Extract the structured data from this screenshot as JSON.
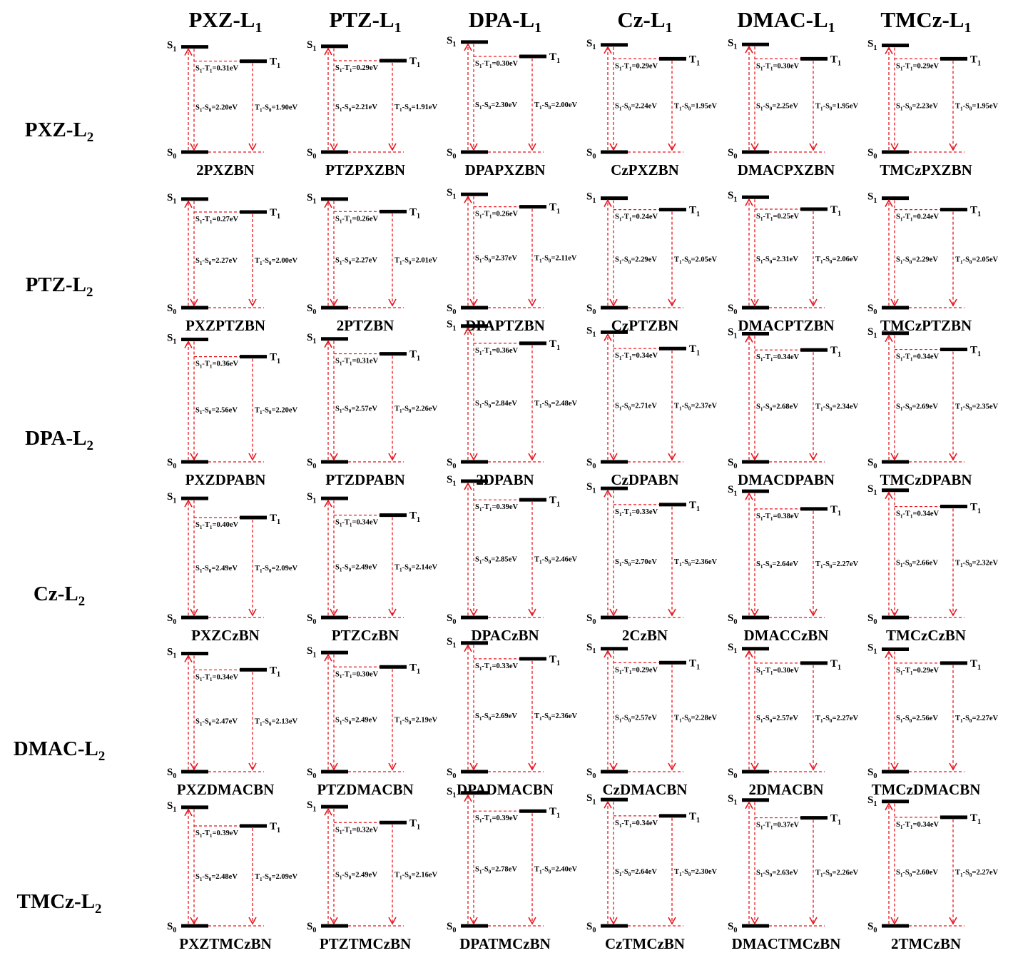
{
  "diagram": {
    "columns": [
      {
        "base": "PXZ-L",
        "sub": "1"
      },
      {
        "base": "PTZ-L",
        "sub": "1"
      },
      {
        "base": "DPA-L",
        "sub": "1"
      },
      {
        "base": "Cz-L",
        "sub": "1"
      },
      {
        "base": "DMAC-L",
        "sub": "1"
      },
      {
        "base": "TMCz-L",
        "sub": "1"
      }
    ],
    "rows": [
      {
        "base": "PXZ-L",
        "sub": "2"
      },
      {
        "base": "PTZ-L",
        "sub": "2"
      },
      {
        "base": "DPA-L",
        "sub": "2"
      },
      {
        "base": "Cz-L",
        "sub": "2"
      },
      {
        "base": "DMAC-L",
        "sub": "2"
      },
      {
        "base": "TMCz-L",
        "sub": "2"
      }
    ],
    "state_labels": {
      "s1": "S1",
      "t1": "T1",
      "s0": "S0"
    },
    "unit": "eV",
    "cells": [
      [
        {
          "name": "2PXZBN",
          "est": 0.31,
          "s1s0": 2.2,
          "t1s0": 1.9
        },
        {
          "name": "PTZPXZBN",
          "est": 0.29,
          "s1s0": 2.21,
          "t1s0": 1.91
        },
        {
          "name": "DPAPXZBN",
          "est": 0.3,
          "s1s0": 2.3,
          "t1s0": 2.0
        },
        {
          "name": "CzPXZBN",
          "est": 0.29,
          "s1s0": 2.24,
          "t1s0": 1.95
        },
        {
          "name": "DMACPXZBN",
          "est": 0.3,
          "s1s0": 2.25,
          "t1s0": 1.95
        },
        {
          "name": "TMCzPXZBN",
          "est": 0.29,
          "s1s0": 2.23,
          "t1s0": 1.95
        }
      ],
      [
        {
          "name": "PXZPTZBN",
          "est": 0.27,
          "s1s0": 2.27,
          "t1s0": 2.0
        },
        {
          "name": "2PTZBN",
          "est": 0.26,
          "s1s0": 2.27,
          "t1s0": 2.01
        },
        {
          "name": "DPAPTZBN",
          "est": 0.26,
          "s1s0": 2.37,
          "t1s0": 2.11
        },
        {
          "name": "CzPTZBN",
          "est": 0.24,
          "s1s0": 2.29,
          "t1s0": 2.05
        },
        {
          "name": "DMACPTZBN",
          "est": 0.25,
          "s1s0": 2.31,
          "t1s0": 2.06
        },
        {
          "name": "TMCzPTZBN",
          "est": 0.24,
          "s1s0": 2.29,
          "t1s0": 2.05
        }
      ],
      [
        {
          "name": "PXZDPABN",
          "est": 0.36,
          "s1s0": 2.56,
          "t1s0": 2.2
        },
        {
          "name": "PTZDPABN",
          "est": 0.31,
          "s1s0": 2.57,
          "t1s0": 2.26
        },
        {
          "name": "2DPABN",
          "est": 0.36,
          "s1s0": 2.84,
          "t1s0": 2.48
        },
        {
          "name": "CzDPABN",
          "est": 0.34,
          "s1s0": 2.71,
          "t1s0": 2.37
        },
        {
          "name": "DMACDPABN",
          "est": 0.34,
          "s1s0": 2.68,
          "t1s0": 2.34
        },
        {
          "name": "TMCzDPABN",
          "est": 0.34,
          "s1s0": 2.69,
          "t1s0": 2.35
        }
      ],
      [
        {
          "name": "PXZCzBN",
          "est": 0.4,
          "s1s0": 2.49,
          "t1s0": 2.09
        },
        {
          "name": "PTZCzBN",
          "est": 0.34,
          "s1s0": 2.49,
          "t1s0": 2.14
        },
        {
          "name": "DPACzBN",
          "est": 0.39,
          "s1s0": 2.85,
          "t1s0": 2.46
        },
        {
          "name": "2CzBN",
          "est": 0.33,
          "s1s0": 2.7,
          "t1s0": 2.36
        },
        {
          "name": "DMACCzBN",
          "est": 0.38,
          "s1s0": 2.64,
          "t1s0": 2.27
        },
        {
          "name": "TMCzCzBN",
          "est": 0.34,
          "s1s0": 2.66,
          "t1s0": 2.32
        }
      ],
      [
        {
          "name": "PXZDMACBN",
          "est": 0.34,
          "s1s0": 2.47,
          "t1s0": 2.13
        },
        {
          "name": "PTZDMACBN",
          "est": 0.3,
          "s1s0": 2.49,
          "t1s0": 2.19
        },
        {
          "name": "DPADMACBN",
          "est": 0.33,
          "s1s0": 2.69,
          "t1s0": 2.36
        },
        {
          "name": "CzDMACBN",
          "est": 0.29,
          "s1s0": 2.57,
          "t1s0": 2.28
        },
        {
          "name": "2DMACBN",
          "est": 0.3,
          "s1s0": 2.57,
          "t1s0": 2.27
        },
        {
          "name": "TMCzDMACBN",
          "est": 0.29,
          "s1s0": 2.56,
          "t1s0": 2.27
        }
      ],
      [
        {
          "name": "PXZTMCzBN",
          "est": 0.39,
          "s1s0": 2.48,
          "t1s0": 2.09
        },
        {
          "name": "PTZTMCzBN",
          "est": 0.32,
          "s1s0": 2.49,
          "t1s0": 2.16
        },
        {
          "name": "DPATMCzBN",
          "est": 0.39,
          "s1s0": 2.78,
          "t1s0": 2.4
        },
        {
          "name": "CzTMCzBN",
          "est": 0.34,
          "s1s0": 2.64,
          "t1s0": 2.3
        },
        {
          "name": "DMACTMCzBN",
          "est": 0.37,
          "s1s0": 2.63,
          "t1s0": 2.26
        },
        {
          "name": "2TMCzBN",
          "est": 0.34,
          "s1s0": 2.6,
          "t1s0": 2.27
        }
      ]
    ]
  }
}
